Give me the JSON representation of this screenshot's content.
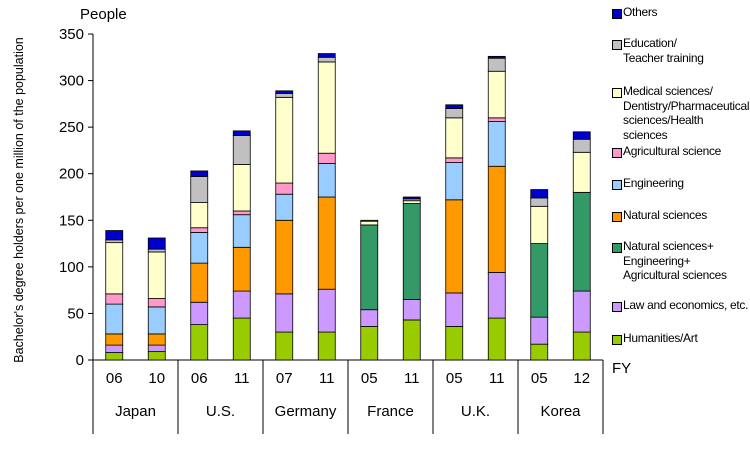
{
  "chart_data": {
    "type": "bar",
    "stacked": true,
    "ylabel": "Bachelor's degree holders per one million of the population",
    "yunit": "People",
    "xunit": "FY",
    "ylim": [
      0,
      350
    ],
    "yticks": [
      0,
      50,
      100,
      150,
      200,
      250,
      300,
      350
    ],
    "grid": false,
    "legend_position": "right",
    "groups": [
      {
        "name": "Japan",
        "categories": [
          "06",
          "10"
        ]
      },
      {
        "name": "U.S.",
        "categories": [
          "06",
          "11"
        ]
      },
      {
        "name": "Germany",
        "categories": [
          "07",
          "11"
        ]
      },
      {
        "name": "France",
        "categories": [
          "05",
          "11"
        ]
      },
      {
        "name": "U.K.",
        "categories": [
          "05",
          "11"
        ]
      },
      {
        "name": "Korea",
        "categories": [
          "05",
          "12"
        ]
      }
    ],
    "series": [
      {
        "name": "Humanities/Art",
        "color": "#99cc00",
        "values": [
          8,
          9,
          38,
          45,
          30,
          30,
          36,
          43,
          36,
          45,
          17,
          30
        ]
      },
      {
        "name": "Law and economics, etc.",
        "color": "#cc99ff",
        "values": [
          8,
          7,
          24,
          29,
          41,
          46,
          18,
          22,
          36,
          49,
          29,
          44
        ]
      },
      {
        "name": "Natural sciences+\nEngineering+\nAgricultural sciences",
        "color": "#339966",
        "values": [
          0,
          0,
          0,
          0,
          0,
          0,
          91,
          103,
          0,
          0,
          79,
          106
        ]
      },
      {
        "name": "Natural sciences",
        "color": "#ff9900",
        "values": [
          12,
          12,
          42,
          47,
          79,
          99,
          0,
          0,
          100,
          114,
          0,
          0
        ]
      },
      {
        "name": "Engineering",
        "color": "#99ccff",
        "values": [
          32,
          29,
          33,
          35,
          28,
          36,
          0,
          0,
          40,
          48,
          0,
          0
        ]
      },
      {
        "name": "Agricultural science",
        "color": "#ff99cc",
        "values": [
          11,
          9,
          5,
          4,
          12,
          11,
          0,
          0,
          5,
          4,
          0,
          0
        ]
      },
      {
        "name": "Medical sciences/\nDentistry/Pharmaceutical\nsciences/Health sciences",
        "color": "#ffffcc",
        "values": [
          55,
          50,
          27,
          50,
          92,
          98,
          4,
          3,
          43,
          50,
          40,
          43
        ]
      },
      {
        "name": "Education/\nTeacher training",
        "color": "#c0c0c0",
        "values": [
          3,
          3,
          28,
          31,
          4,
          5,
          1,
          2,
          10,
          14,
          9,
          14
        ]
      },
      {
        "name": "Others",
        "color": "#0000cc",
        "values": [
          10,
          12,
          6,
          5,
          3,
          4,
          0,
          2,
          4,
          2,
          9,
          8
        ]
      }
    ]
  }
}
